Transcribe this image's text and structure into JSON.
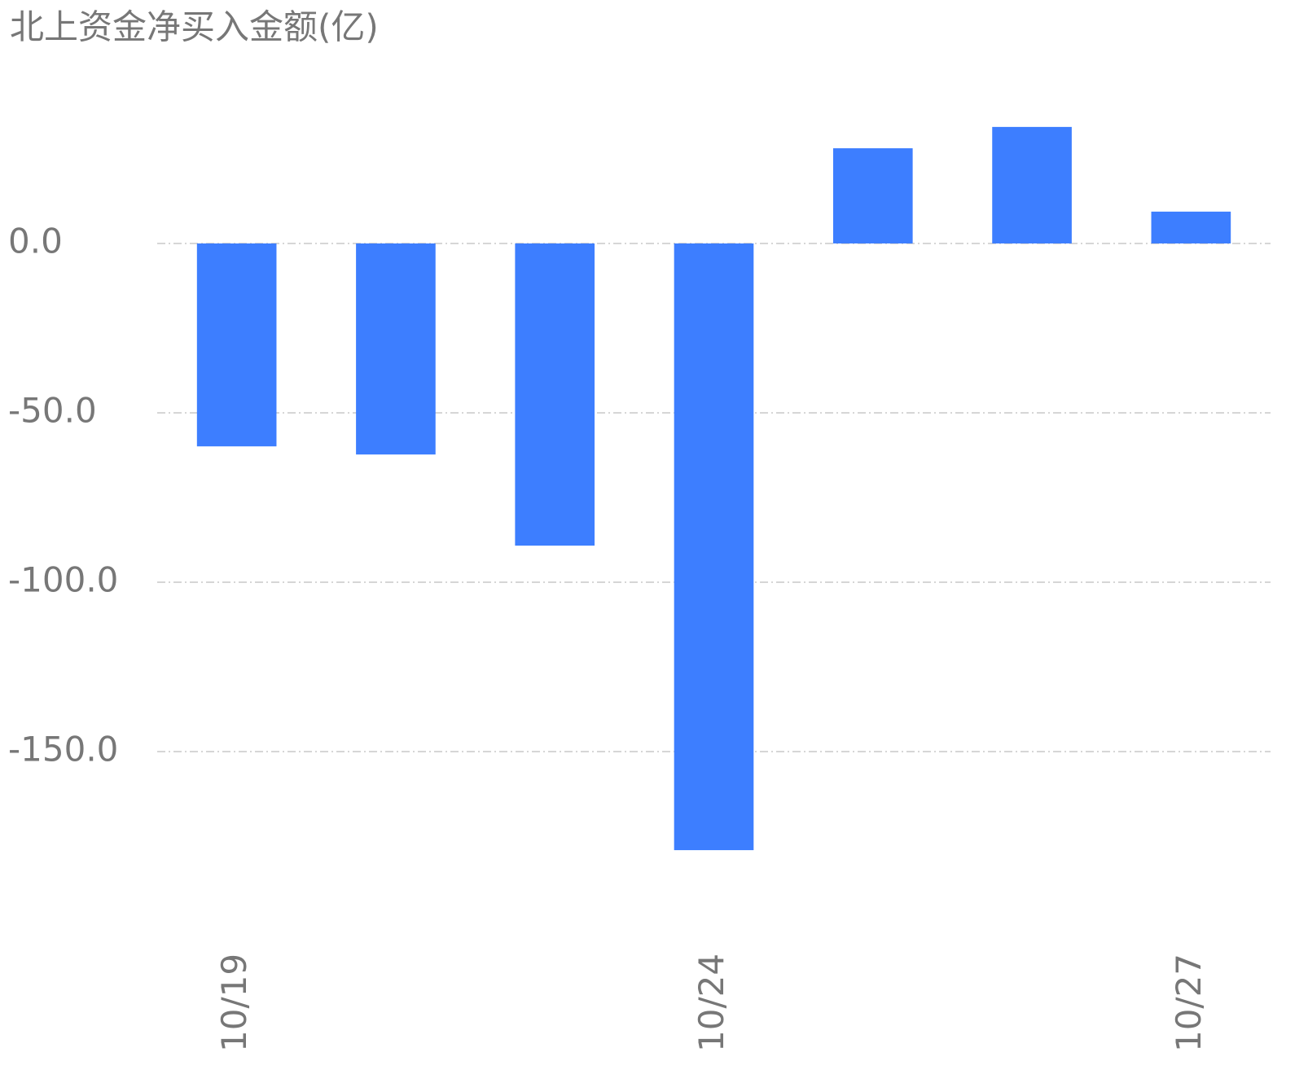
{
  "chart_data": {
    "type": "bar",
    "title": "北上资金净买入金额(亿)",
    "categories": [
      "10/19",
      null,
      null,
      "10/24",
      null,
      null,
      "10/27"
    ],
    "values": [
      -59.9,
      -62.3,
      -89.2,
      -179.1,
      28.1,
      34.4,
      9.4
    ],
    "color": "#3d7eff",
    "ylim": [
      -190,
      48
    ],
    "yticks": [
      {
        "value": 0,
        "label": "0.0"
      },
      {
        "value": -50,
        "label": "-50.0"
      },
      {
        "value": -100,
        "label": "-100.0"
      },
      {
        "value": -150,
        "label": "-150.0"
      }
    ],
    "grid": true
  }
}
